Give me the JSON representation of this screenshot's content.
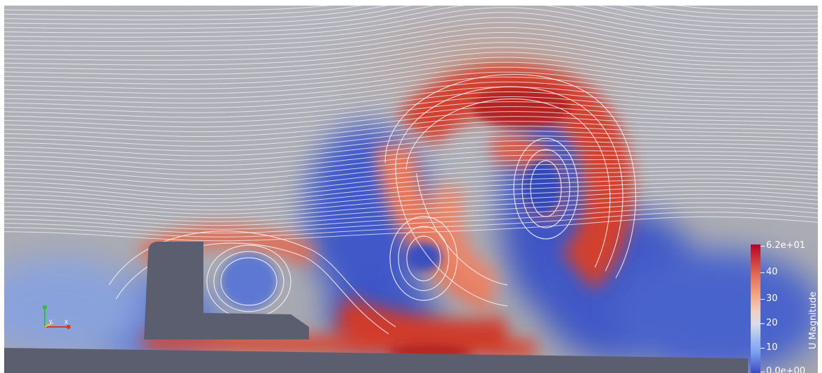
{
  "colorbar": {
    "title": "U Magnitude",
    "max_label": "6.2e+01",
    "min_label": "0.0e+00",
    "ticks": [
      "40",
      "30",
      "20",
      "10"
    ]
  },
  "colors": {
    "background": "#a9aab0",
    "high": "#b40426",
    "low": "#3b4cc0",
    "obstacle": "#5b5e6e",
    "streamline": "#f4f4f8"
  }
}
